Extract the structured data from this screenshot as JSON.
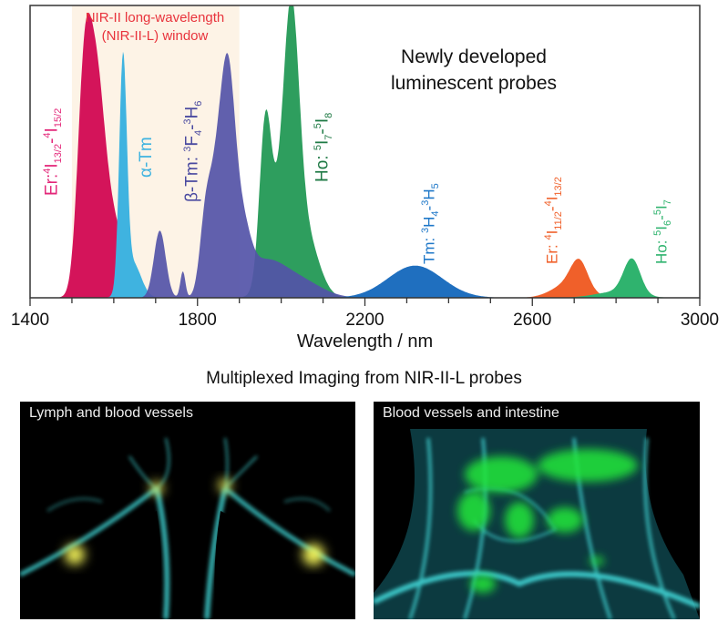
{
  "chart_data": {
    "type": "area",
    "xlabel": "Wavelength / nm",
    "ylabel": "",
    "xlim": [
      1400,
      3000
    ],
    "ylim": [
      0,
      1
    ],
    "xticks_major": [
      1400,
      1800,
      2200,
      2600,
      3000
    ],
    "xtick_minor_step": 100,
    "window": {
      "label_line1": "NIR-II long-wavelength",
      "label_line2": "(NIR-II-L) window",
      "range": [
        1500,
        1900
      ],
      "color": "#fdf3e6",
      "label_color": "#e8333c"
    },
    "annotation": {
      "line1": "Newly developed",
      "line2": "luminescent probes"
    },
    "series": [
      {
        "name": "Er 4I13/2-4I15/2",
        "color": "#d4145a",
        "peaks": [
          [
            1528,
            0.6,
            16
          ],
          [
            1556,
            0.58,
            20
          ],
          [
            1590,
            0.28,
            35
          ]
        ]
      },
      {
        "name": "α-Tm",
        "color": "#3fb3e0",
        "peaks": [
          [
            1622,
            0.78,
            9
          ],
          [
            1645,
            0.12,
            20
          ]
        ]
      },
      {
        "name": "Ho 5I7-5I8",
        "color": "#2e9e5e",
        "peaks": [
          [
            1962,
            0.5,
            14
          ],
          [
            2025,
            0.72,
            18
          ],
          [
            2000,
            0.3,
            30
          ],
          [
            2060,
            0.2,
            30
          ]
        ]
      },
      {
        "name": "β-Tm 3F4-3H6",
        "color": "#5454a8",
        "peaks": [
          [
            1710,
            0.23,
            14
          ],
          [
            1765,
            0.09,
            6
          ],
          [
            1820,
            0.28,
            14
          ],
          [
            1872,
            0.7,
            17
          ],
          [
            1845,
            0.3,
            15
          ],
          [
            1905,
            0.2,
            20
          ],
          [
            1960,
            0.12,
            50
          ],
          [
            2050,
            0.05,
            50
          ]
        ]
      },
      {
        "name": "Tm 3H4-3H5",
        "color": "#1f6fbf",
        "peaks": [
          [
            2320,
            0.11,
            65
          ]
        ]
      },
      {
        "name": "Er 4I11/2-4I13/2",
        "color": "#f0602a",
        "peaks": [
          [
            2712,
            0.09,
            20
          ],
          [
            2690,
            0.05,
            40
          ]
        ]
      },
      {
        "name": "Ho 5I6-5I7",
        "color": "#2fb36e",
        "peaks": [
          [
            2838,
            0.12,
            20
          ],
          [
            2800,
            0.02,
            50
          ]
        ]
      }
    ]
  },
  "labels": {
    "er1": {
      "main": "Er:",
      "s1": "4",
      "l1": "I",
      "b1": "13/2",
      "dash": "-",
      "s2": "4",
      "l2": "I",
      "b2": "15/2",
      "color": "#e3287a"
    },
    "atm": {
      "main": "α-Tm",
      "color": "#3fb3e0"
    },
    "btm": {
      "main": "β-Tm: ",
      "s1": "3",
      "l1": "F",
      "b1": "4",
      "dash": "-",
      "s2": "3",
      "l2": "H",
      "b2": "6",
      "color": "#4a4aa0"
    },
    "ho1": {
      "main": "Ho: ",
      "s1": "5",
      "l1": "I",
      "b1": "7",
      "dash": "-",
      "s2": "5",
      "l2": "I",
      "b2": "8",
      "color": "#1f7a45"
    },
    "tm": {
      "main": "Tm: ",
      "s1": "3",
      "l1": "H",
      "b1": "4",
      "dash": "-",
      "s2": "3",
      "l2": "H",
      "b2": "5",
      "color": "#1f78c8"
    },
    "er2": {
      "main": "Er: ",
      "s1": "4",
      "l1": "I",
      "b1": "11/2",
      "dash": "-",
      "s2": "4",
      "l2": "I",
      "b2": "13/2",
      "color": "#f0602a"
    },
    "ho2": {
      "main": "Ho: ",
      "s1": "5",
      "l1": "I",
      "b1": "6",
      "dash": "-",
      "s2": "5",
      "l2": "I",
      "b2": "7",
      "color": "#2fb36e"
    }
  },
  "imaging": {
    "title": "Multiplexed Imaging from NIR-II-L probes",
    "left_caption": "Lymph and blood vessels",
    "right_caption": "Blood vessels and intestine"
  }
}
